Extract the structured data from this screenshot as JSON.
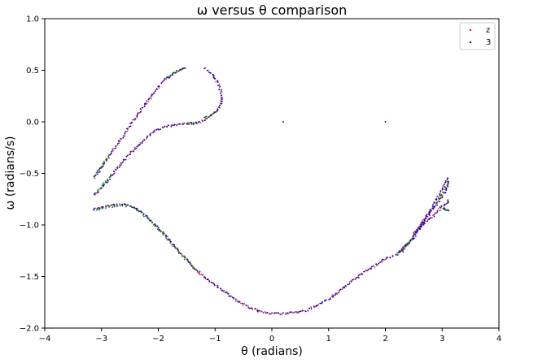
{
  "chart_data": {
    "type": "scatter",
    "title": "ω versus θ  comparison",
    "xlabel": "θ (radians)",
    "ylabel": "ω (radians/s)",
    "xlim": [
      -4,
      4
    ],
    "ylim": [
      -2.0,
      1.0
    ],
    "xticks": [
      -4,
      -3,
      -2,
      -1,
      0,
      1,
      2,
      3,
      4
    ],
    "xtick_labels": [
      "−4",
      "−3",
      "−2",
      "−1",
      "0",
      "1",
      "2",
      "3",
      "4"
    ],
    "yticks": [
      -2.0,
      -1.5,
      -1.0,
      -0.5,
      0.0,
      0.5,
      1.0
    ],
    "ytick_labels": [
      "−2.0",
      "−1.5",
      "−1.0",
      "−0.5",
      "0.0",
      "0.5",
      "1.0"
    ],
    "grid": false,
    "legend_position": "top-right",
    "series": [
      {
        "name": "z",
        "color": "#d62728",
        "segments": [
          [
            [
              -3.15,
              -0.85
            ],
            [
              -3.0,
              -0.83
            ],
            [
              -2.8,
              -0.81
            ],
            [
              -2.6,
              -0.8
            ],
            [
              -2.4,
              -0.84
            ],
            [
              -2.2,
              -0.92
            ],
            [
              -2.0,
              -1.03
            ],
            [
              -1.8,
              -1.15
            ],
            [
              -1.6,
              -1.28
            ],
            [
              -1.4,
              -1.4
            ],
            [
              -1.2,
              -1.5
            ],
            [
              -1.0,
              -1.58
            ],
            [
              -0.8,
              -1.66
            ],
            [
              -0.6,
              -1.74
            ],
            [
              -0.4,
              -1.8
            ],
            [
              -0.2,
              -1.84
            ],
            [
              0.0,
              -1.86
            ],
            [
              0.2,
              -1.86
            ],
            [
              0.4,
              -1.85
            ],
            [
              0.6,
              -1.83
            ],
            [
              0.8,
              -1.78
            ],
            [
              1.0,
              -1.72
            ],
            [
              1.2,
              -1.64
            ],
            [
              1.4,
              -1.55
            ],
            [
              1.6,
              -1.47
            ],
            [
              1.8,
              -1.4
            ],
            [
              2.0,
              -1.33
            ],
            [
              2.15,
              -1.29
            ]
          ],
          [
            [
              2.2,
              -1.29
            ],
            [
              2.4,
              -1.18
            ],
            [
              2.6,
              -1.02
            ],
            [
              2.8,
              -0.85
            ],
            [
              3.0,
              -0.66
            ],
            [
              3.12,
              -0.52
            ]
          ],
          [
            [
              2.3,
              -1.25
            ],
            [
              2.5,
              -1.12
            ],
            [
              2.7,
              -0.95
            ],
            [
              2.9,
              -0.8
            ],
            [
              3.05,
              -0.68
            ],
            [
              3.12,
              -0.56
            ]
          ],
          [
            [
              2.5,
              -1.08
            ],
            [
              2.7,
              -0.98
            ],
            [
              2.9,
              -0.88
            ],
            [
              3.0,
              -0.82
            ],
            [
              3.05,
              -0.8
            ],
            [
              3.1,
              -0.78
            ],
            [
              3.12,
              -0.74
            ]
          ],
          [
            [
              3.02,
              -0.84
            ],
            [
              3.08,
              -0.85
            ],
            [
              3.13,
              -0.86
            ]
          ],
          [
            [
              -3.12,
              -0.71
            ],
            [
              -2.9,
              -0.58
            ],
            [
              -2.7,
              -0.44
            ],
            [
              -2.5,
              -0.31
            ],
            [
              -2.3,
              -0.2
            ],
            [
              -2.1,
              -0.1
            ],
            [
              -1.9,
              -0.05
            ],
            [
              -1.7,
              -0.03
            ],
            [
              -1.5,
              -0.02
            ],
            [
              -1.3,
              -0.01
            ],
            [
              -1.15,
              0.03
            ],
            [
              -1.05,
              0.07
            ],
            [
              -0.95,
              0.12
            ],
            [
              -0.9,
              0.17
            ],
            [
              -0.88,
              0.22
            ],
            [
              -0.9,
              0.3
            ],
            [
              -0.95,
              0.38
            ],
            [
              -1.05,
              0.46
            ],
            [
              -1.2,
              0.53
            ]
          ],
          [
            [
              -3.12,
              -0.54
            ],
            [
              -2.9,
              -0.36
            ],
            [
              -2.7,
              -0.2
            ],
            [
              -2.5,
              -0.04
            ],
            [
              -2.3,
              0.12
            ],
            [
              -2.1,
              0.27
            ],
            [
              -1.9,
              0.4
            ],
            [
              -1.7,
              0.48
            ],
            [
              -1.5,
              0.53
            ]
          ]
        ],
        "isolated": [
          [
            0.2,
            0.0
          ],
          [
            2.0,
            0.0
          ]
        ]
      },
      {
        "name": "3",
        "color": "#0000cc",
        "segments": [
          [
            [
              -3.15,
              -0.85
            ],
            [
              -3.0,
              -0.83
            ],
            [
              -2.8,
              -0.81
            ],
            [
              -2.6,
              -0.8
            ],
            [
              -2.4,
              -0.84
            ],
            [
              -2.2,
              -0.92
            ],
            [
              -2.0,
              -1.03
            ],
            [
              -1.8,
              -1.15
            ],
            [
              -1.6,
              -1.28
            ],
            [
              -1.4,
              -1.4
            ],
            [
              -1.2,
              -1.5
            ],
            [
              -1.0,
              -1.58
            ],
            [
              -0.8,
              -1.66
            ],
            [
              -0.6,
              -1.74
            ],
            [
              -0.4,
              -1.8
            ],
            [
              -0.2,
              -1.84
            ],
            [
              0.0,
              -1.86
            ],
            [
              0.2,
              -1.86
            ],
            [
              0.4,
              -1.85
            ],
            [
              0.6,
              -1.83
            ],
            [
              0.8,
              -1.78
            ],
            [
              1.0,
              -1.72
            ],
            [
              1.2,
              -1.64
            ],
            [
              1.4,
              -1.55
            ],
            [
              1.6,
              -1.47
            ],
            [
              1.8,
              -1.4
            ],
            [
              2.0,
              -1.33
            ],
            [
              2.15,
              -1.29
            ]
          ],
          [
            [
              2.2,
              -1.29
            ],
            [
              2.4,
              -1.18
            ],
            [
              2.6,
              -1.02
            ],
            [
              2.8,
              -0.85
            ],
            [
              3.0,
              -0.66
            ],
            [
              3.12,
              -0.52
            ]
          ],
          [
            [
              2.3,
              -1.25
            ],
            [
              2.5,
              -1.12
            ],
            [
              2.7,
              -0.95
            ],
            [
              2.9,
              -0.8
            ],
            [
              3.05,
              -0.68
            ],
            [
              3.12,
              -0.56
            ]
          ],
          [
            [
              2.5,
              -1.08
            ],
            [
              2.7,
              -0.98
            ],
            [
              2.9,
              -0.88
            ],
            [
              3.0,
              -0.82
            ],
            [
              3.05,
              -0.8
            ],
            [
              3.1,
              -0.78
            ],
            [
              3.12,
              -0.74
            ]
          ],
          [
            [
              3.02,
              -0.84
            ],
            [
              3.08,
              -0.85
            ],
            [
              3.13,
              -0.86
            ]
          ],
          [
            [
              -3.12,
              -0.71
            ],
            [
              -2.9,
              -0.58
            ],
            [
              -2.7,
              -0.44
            ],
            [
              -2.5,
              -0.31
            ],
            [
              -2.3,
              -0.2
            ],
            [
              -2.1,
              -0.1
            ],
            [
              -1.9,
              -0.05
            ],
            [
              -1.7,
              -0.03
            ],
            [
              -1.5,
              -0.02
            ],
            [
              -1.3,
              -0.01
            ],
            [
              -1.15,
              0.03
            ],
            [
              -1.05,
              0.07
            ],
            [
              -0.95,
              0.12
            ],
            [
              -0.9,
              0.17
            ],
            [
              -0.88,
              0.22
            ],
            [
              -0.9,
              0.3
            ],
            [
              -0.95,
              0.38
            ],
            [
              -1.05,
              0.46
            ],
            [
              -1.2,
              0.53
            ]
          ],
          [
            [
              -3.12,
              -0.54
            ],
            [
              -2.9,
              -0.36
            ],
            [
              -2.7,
              -0.2
            ],
            [
              -2.5,
              -0.04
            ],
            [
              -2.3,
              0.12
            ],
            [
              -2.1,
              0.27
            ],
            [
              -1.9,
              0.4
            ],
            [
              -1.7,
              0.48
            ],
            [
              -1.5,
              0.53
            ]
          ]
        ],
        "isolated": [
          [
            0.2,
            0.0
          ],
          [
            2.0,
            0.0
          ]
        ]
      },
      {
        "name": "",
        "color": "#008000",
        "segments": [
          [
            [
              -3.1,
              -0.85
            ],
            [
              -2.9,
              -0.83
            ],
            [
              -2.7,
              -0.81
            ],
            [
              -2.5,
              -0.82
            ],
            [
              -2.3,
              -0.88
            ],
            [
              -2.1,
              -0.98
            ],
            [
              -1.9,
              -1.09
            ],
            [
              -1.7,
              -1.22
            ],
            [
              -1.5,
              -1.34
            ],
            [
              -1.3,
              -1.45
            ]
          ],
          [
            [
              2.2,
              -1.29
            ],
            [
              2.3,
              -1.26
            ],
            [
              2.4,
              -1.18
            ],
            [
              2.5,
              -1.1
            ]
          ],
          [
            [
              2.9,
              -0.8
            ],
            [
              3.0,
              -0.7
            ],
            [
              3.08,
              -0.62
            ],
            [
              3.12,
              -0.56
            ]
          ],
          [
            [
              3.02,
              -0.85
            ],
            [
              3.06,
              -0.85
            ],
            [
              3.1,
              -0.86
            ],
            [
              3.13,
              -0.86
            ]
          ],
          [
            [
              -3.1,
              -0.7
            ],
            [
              -3.0,
              -0.62
            ],
            [
              -2.8,
              -0.5
            ]
          ],
          [
            [
              -3.12,
              -0.52
            ],
            [
              -3.05,
              -0.46
            ],
            [
              -2.95,
              -0.38
            ],
            [
              -2.85,
              -0.32
            ]
          ],
          [
            [
              -1.85,
              0.43
            ],
            [
              -1.75,
              0.46
            ],
            [
              -1.65,
              0.49
            ],
            [
              -1.55,
              0.52
            ]
          ],
          [
            [
              -1.2,
              0.04
            ],
            [
              -1.1,
              0.06
            ],
            [
              -1.0,
              0.09
            ],
            [
              -0.95,
              0.12
            ]
          ],
          [
            [
              -1.5,
              -0.02
            ],
            [
              -1.4,
              -0.01
            ],
            [
              -1.3,
              0.0
            ]
          ]
        ],
        "isolated": []
      }
    ]
  }
}
